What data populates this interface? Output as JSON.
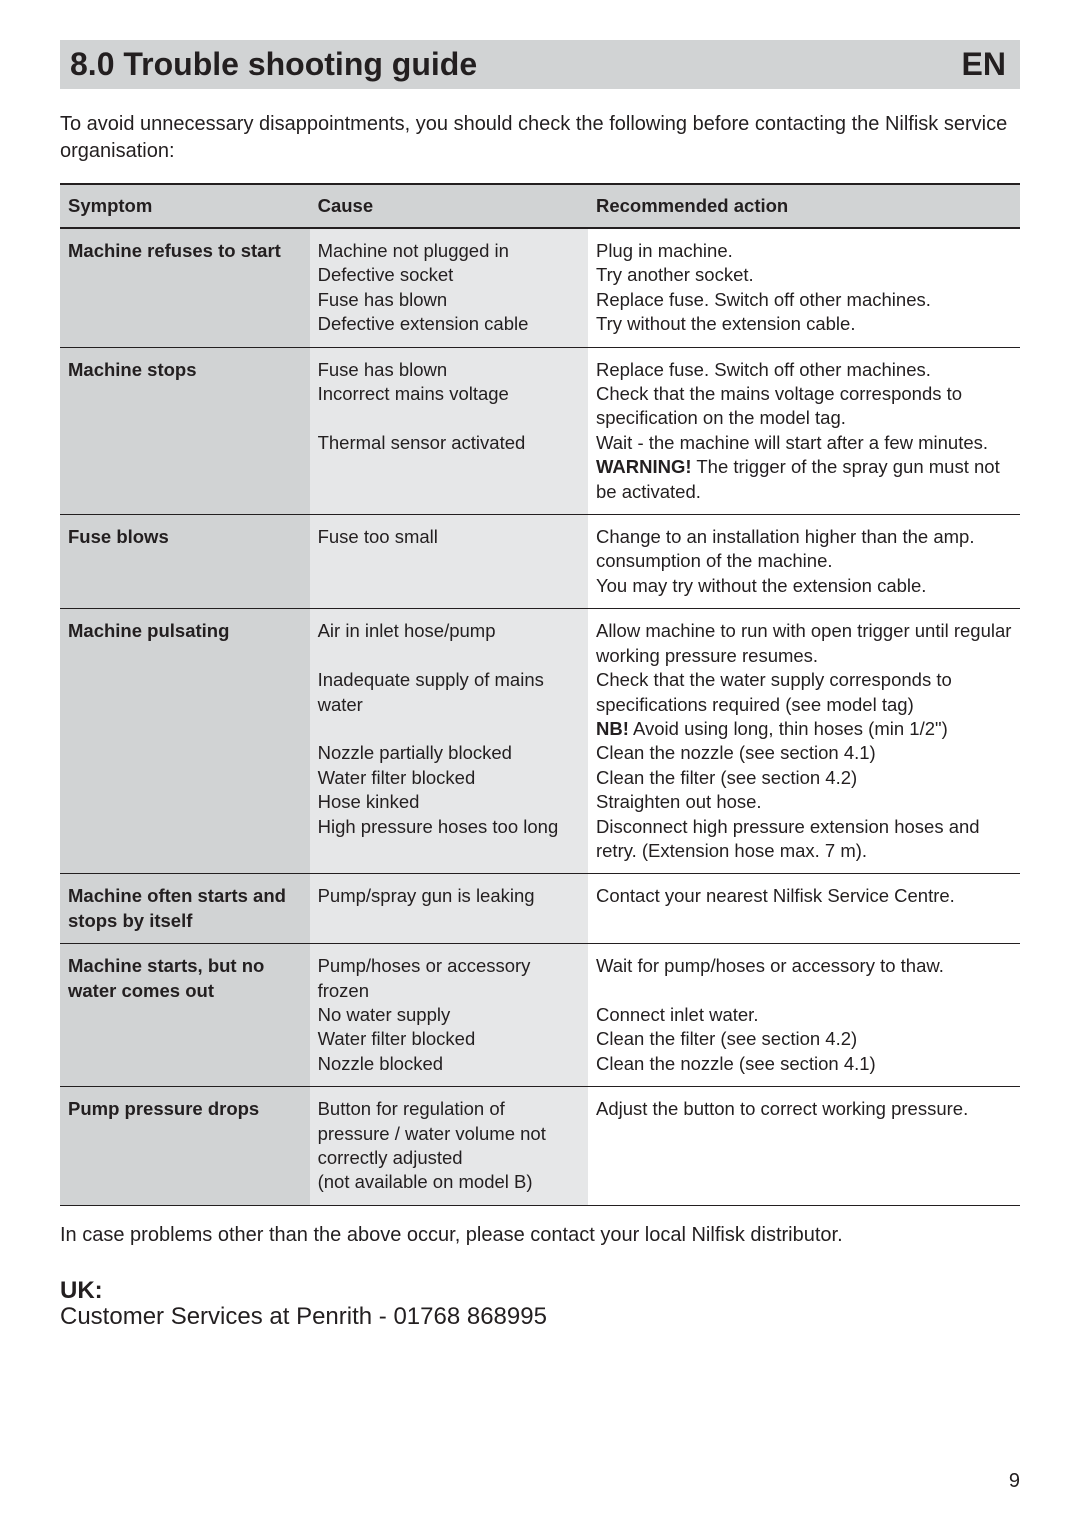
{
  "header": {
    "title": "8.0  Trouble shooting guide",
    "lang": "EN"
  },
  "intro": "To avoid unnecessary disappointments, you should check the following before contacting the Nilfisk service organisation:",
  "table": {
    "columns": [
      "Symptom",
      "Cause",
      "Recommended action"
    ],
    "rows": [
      {
        "symptom": "Machine refuses to start",
        "cause": "Machine not plugged in\nDefective socket\nFuse has blown\nDefective extension cable",
        "action": "Plug in machine.\nTry another socket.\nReplace fuse. Switch off other machines.\nTry without the extension cable."
      },
      {
        "symptom": "Machine stops",
        "cause": "Fuse has blown\nIncorrect mains voltage\n\nThermal sensor activated",
        "action_html": "Replace fuse. Switch off other machines.\nCheck that the mains voltage corresponds to specification on the model tag.\nWait - the machine will start after a few minutes.\n<b>WARNING!</b> The trigger of the spray gun must not be activated."
      },
      {
        "symptom": "Fuse blows",
        "cause": "Fuse too small",
        "action": "Change to an installation higher than the amp. consumption of the machine.\nYou may try without the extension cable."
      },
      {
        "symptom": "Machine pulsating",
        "cause": "Air in inlet hose/pump\n\nInadequate supply of mains water\n\nNozzle partially blocked\nWater filter blocked\nHose kinked\nHigh pressure hoses too long",
        "action_html": "Allow machine to run with open trigger until regular working pressure resumes.\nCheck that the water supply corresponds to specifications required (see model tag)\n<b>NB!</b> Avoid using long, thin hoses (min 1/2\")\nClean the nozzle (see section 4.1)\nClean the filter (see section 4.2)\nStraighten out hose.\nDisconnect high pressure extension hoses and retry. (Extension hose max. 7 m)."
      },
      {
        "symptom": "Machine often starts and stops by itself",
        "cause": "Pump/spray gun is leaking",
        "action": "Contact your nearest Nilfisk Service Centre."
      },
      {
        "symptom": "Machine starts, but no water comes out",
        "cause": "Pump/hoses or accessory frozen\nNo water supply\nWater filter blocked\nNozzle blocked",
        "action": "Wait for pump/hoses or accessory to thaw.\n\nConnect inlet water.\nClean the filter (see section 4.2)\nClean the nozzle (see section 4.1)"
      },
      {
        "symptom": "Pump pressure drops",
        "cause": "Button for regulation of pressure / water volume not correctly adjusted\n(not available on model B)",
        "action": "Adjust the button to correct working pressure."
      }
    ]
  },
  "outro": "In case problems other than the above occur, please contact your local Nilfisk distributor.",
  "uk": {
    "label": "UK:",
    "text": "Customer Services at Penrith -  01768 868995"
  },
  "page_number": "9"
}
